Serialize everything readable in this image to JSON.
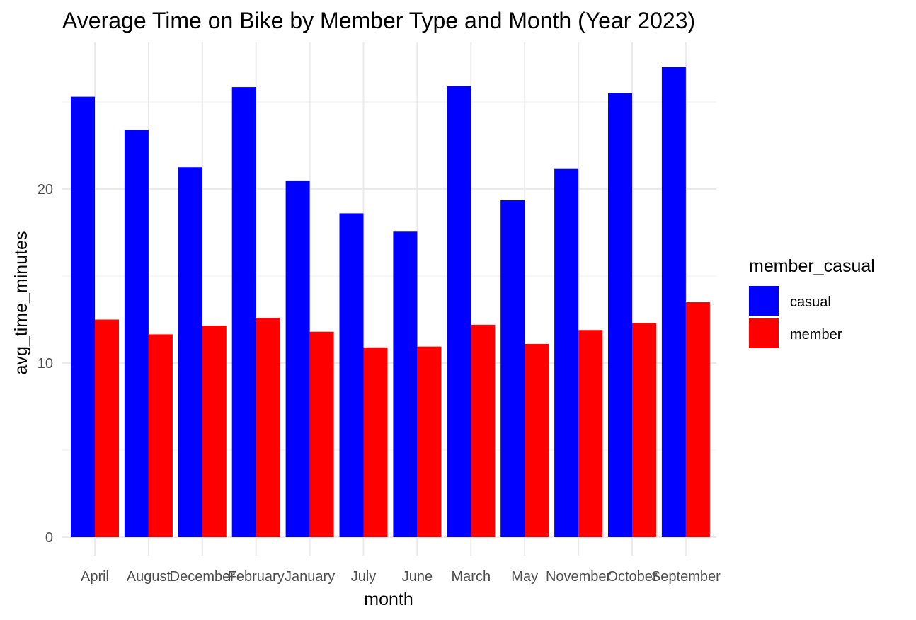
{
  "chart_data": {
    "type": "bar",
    "title": "Average Time on Bike by Member Type and Month (Year 2023)",
    "xlabel": "month",
    "ylabel": "avg_time_minutes",
    "categories": [
      "April",
      "August",
      "December",
      "February",
      "January",
      "July",
      "June",
      "March",
      "May",
      "November",
      "October",
      "September"
    ],
    "series": [
      {
        "name": "casual",
        "color": "#0000ff",
        "values": [
          25.3,
          23.4,
          21.25,
          25.85,
          20.45,
          18.6,
          17.55,
          25.9,
          19.35,
          21.15,
          25.5,
          27.0
        ]
      },
      {
        "name": "member",
        "color": "#ff0000",
        "values": [
          12.5,
          11.65,
          12.15,
          12.6,
          11.8,
          10.9,
          10.95,
          12.2,
          11.1,
          11.9,
          12.3,
          13.5
        ]
      }
    ],
    "ylim": [
      0,
      27.0
    ],
    "yticks": [
      0,
      10,
      20
    ],
    "ytick_labels": [
      "0",
      "10",
      "20"
    ],
    "grid": true,
    "legend": {
      "title": "member_casual",
      "position": "right"
    }
  }
}
